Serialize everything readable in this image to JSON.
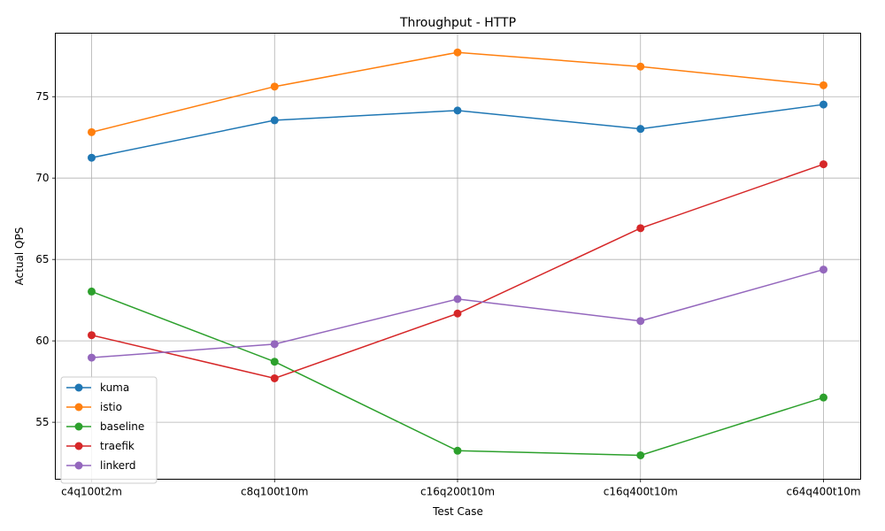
{
  "chart_data": {
    "type": "line",
    "title": "Throughput - HTTP",
    "xlabel": "Test Case",
    "ylabel": "Actual QPS",
    "categories": [
      "c4q100t2m",
      "c8q100t10m",
      "c16q200t10m",
      "c16q400t10m",
      "c64q400t10m"
    ],
    "ylim": [
      51.5,
      78.9
    ],
    "yticks": [
      55,
      60,
      65,
      70,
      75
    ],
    "grid": true,
    "legend_position": "lower-left",
    "series": [
      {
        "name": "kuma",
        "color": "#1f77b4",
        "values": [
          71.25,
          73.55,
          74.15,
          73.02,
          74.52
        ]
      },
      {
        "name": "istio",
        "color": "#ff7f0e",
        "values": [
          72.82,
          75.62,
          77.72,
          76.85,
          75.7
        ]
      },
      {
        "name": "baseline",
        "color": "#2ca02c",
        "values": [
          63.03,
          58.72,
          53.25,
          52.97,
          56.52
        ]
      },
      {
        "name": "traefik",
        "color": "#d62728",
        "values": [
          60.35,
          57.7,
          61.68,
          66.92,
          70.85
        ]
      },
      {
        "name": "linkerd",
        "color": "#9467bd",
        "values": [
          58.97,
          59.8,
          62.57,
          61.22,
          64.38
        ]
      }
    ]
  }
}
